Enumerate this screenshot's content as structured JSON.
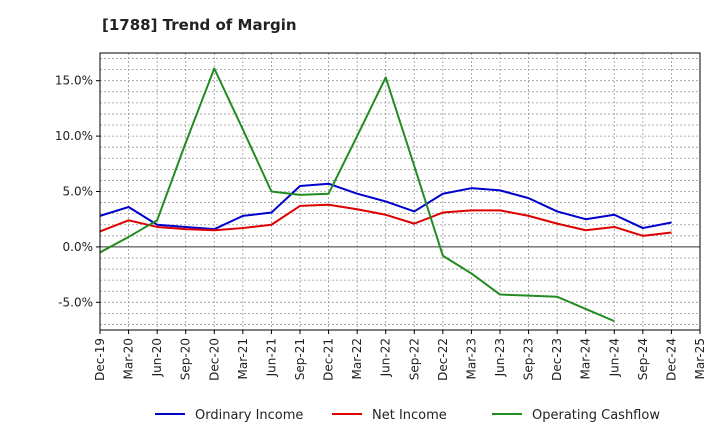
{
  "chart_data": {
    "type": "line",
    "title": "[1788]  Trend of Margin",
    "xlabel": "",
    "ylabel": "",
    "ylim": [
      -7.5,
      17.5
    ],
    "yticks": [
      -5,
      0,
      5,
      10,
      15
    ],
    "ytick_labels": [
      "-5.0%",
      "0.0%",
      "5.0%",
      "10.0%",
      "15.0%"
    ],
    "categories": [
      "Dec-19",
      "Mar-20",
      "Jun-20",
      "Sep-20",
      "Dec-20",
      "Mar-21",
      "Jun-21",
      "Sep-21",
      "Dec-21",
      "Mar-22",
      "Jun-22",
      "Sep-22",
      "Dec-22",
      "Mar-23",
      "Jun-23",
      "Sep-23",
      "Dec-23",
      "Mar-24",
      "Jun-24",
      "Sep-24",
      "Dec-24",
      "Mar-25"
    ],
    "grid": true,
    "legend_position": "bottom",
    "series": [
      {
        "name": "Ordinary Income",
        "color": "#0000cc",
        "values": [
          2.8,
          3.6,
          2.0,
          1.8,
          1.6,
          2.8,
          3.1,
          5.5,
          5.7,
          4.8,
          4.1,
          3.2,
          4.8,
          5.3,
          5.1,
          4.4,
          3.2,
          2.5,
          2.9,
          1.7,
          2.2,
          null
        ]
      },
      {
        "name": "Net Income",
        "color": "#dd0000",
        "values": [
          1.4,
          2.4,
          1.8,
          1.6,
          1.5,
          1.7,
          2.0,
          3.7,
          3.8,
          3.4,
          2.9,
          2.1,
          3.1,
          3.3,
          3.3,
          2.8,
          2.1,
          1.5,
          1.8,
          1.0,
          1.3,
          null
        ]
      },
      {
        "name": "Operating Cashflow",
        "color": "#228b22",
        "values": [
          -0.5,
          0.9,
          2.4,
          9.4,
          16.1,
          10.6,
          5.0,
          4.7,
          4.8,
          10.0,
          15.3,
          7.3,
          -0.8,
          -2.4,
          -4.3,
          -4.4,
          -4.5,
          -5.6,
          -6.7,
          null,
          null,
          null
        ]
      }
    ]
  }
}
